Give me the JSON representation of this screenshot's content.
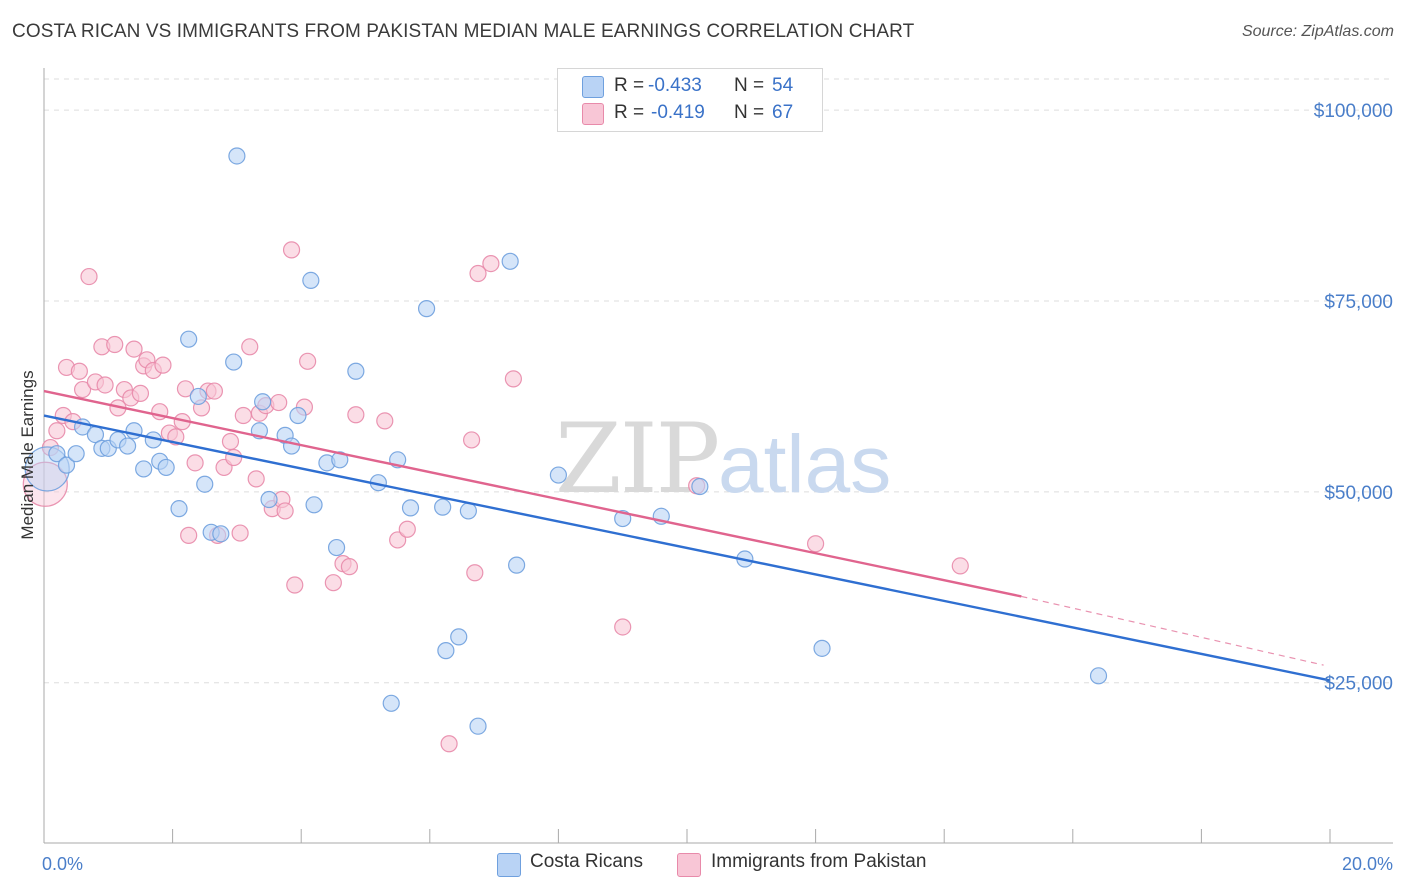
{
  "header": {
    "title": "COSTA RICAN VS IMMIGRANTS FROM PAKISTAN MEDIAN MALE EARNINGS CORRELATION CHART",
    "source": "Source: ZipAtlas.com"
  },
  "legend": {
    "rows": [
      {
        "r_label": "R =",
        "r_value": "-0.433",
        "n_label": "N =",
        "n_value": "54"
      },
      {
        "r_label": "R =",
        "r_value": "-0.419",
        "n_label": "N =",
        "n_value": "67"
      }
    ]
  },
  "bottom_legend": {
    "items": [
      "Costa Ricans",
      "Immigrants from Pakistan"
    ]
  },
  "watermark": {
    "zip": "ZIP",
    "atlas": "atlas"
  },
  "colors": {
    "blue_fill": "#b9d3f5",
    "blue_stroke": "#6fa0de",
    "blue_line": "#2f6fd1",
    "pink_fill": "#f8c6d6",
    "pink_stroke": "#e88aaa",
    "pink_line": "#e0648e",
    "tick_text": "#4a7ec9",
    "grid": "#dddddd"
  },
  "chart_data": {
    "type": "scatter",
    "title": "COSTA RICAN VS IMMIGRANTS FROM PAKISTAN MEDIAN MALE EARNINGS CORRELATION CHART",
    "xlabel": "",
    "ylabel": "Median Male Earnings",
    "x_tick_labels": [
      "0.0%",
      "20.0%"
    ],
    "y_tick_labels": [
      "$25,000",
      "$50,000",
      "$75,000",
      "$100,000"
    ],
    "y_ticks": [
      25000,
      50000,
      75000,
      100000
    ],
    "xlim": [
      0,
      20
    ],
    "ylim": [
      4000,
      105000
    ],
    "grid": true,
    "legend_position": "top-center",
    "series": [
      {
        "name": "Costa Ricans",
        "r": -0.433,
        "n": 54,
        "trend": {
          "x": [
            0,
            20
          ],
          "y": [
            60000,
            25300
          ]
        },
        "points": [
          {
            "x": 0.05,
            "y": 53000,
            "big": true
          },
          {
            "x": 0.2,
            "y": 55000
          },
          {
            "x": 0.35,
            "y": 53500
          },
          {
            "x": 0.5,
            "y": 55000
          },
          {
            "x": 0.6,
            "y": 58500
          },
          {
            "x": 0.8,
            "y": 57500
          },
          {
            "x": 0.9,
            "y": 55700
          },
          {
            "x": 1.0,
            "y": 55700
          },
          {
            "x": 1.15,
            "y": 56800
          },
          {
            "x": 1.3,
            "y": 56000
          },
          {
            "x": 1.4,
            "y": 58000
          },
          {
            "x": 1.55,
            "y": 53000
          },
          {
            "x": 1.7,
            "y": 56800
          },
          {
            "x": 1.8,
            "y": 54000
          },
          {
            "x": 1.9,
            "y": 53200
          },
          {
            "x": 2.1,
            "y": 47800
          },
          {
            "x": 2.25,
            "y": 70000
          },
          {
            "x": 2.4,
            "y": 62500
          },
          {
            "x": 2.5,
            "y": 51000
          },
          {
            "x": 2.6,
            "y": 44700
          },
          {
            "x": 2.75,
            "y": 44500
          },
          {
            "x": 2.95,
            "y": 67000
          },
          {
            "x": 3.0,
            "y": 94000
          },
          {
            "x": 3.35,
            "y": 58000
          },
          {
            "x": 3.4,
            "y": 61800
          },
          {
            "x": 3.5,
            "y": 49000
          },
          {
            "x": 3.75,
            "y": 57400
          },
          {
            "x": 3.85,
            "y": 56000
          },
          {
            "x": 3.95,
            "y": 60000
          },
          {
            "x": 4.15,
            "y": 77700
          },
          {
            "x": 4.2,
            "y": 48300
          },
          {
            "x": 4.4,
            "y": 53800
          },
          {
            "x": 4.55,
            "y": 42700
          },
          {
            "x": 4.6,
            "y": 54200
          },
          {
            "x": 4.85,
            "y": 65800
          },
          {
            "x": 5.2,
            "y": 51200
          },
          {
            "x": 5.4,
            "y": 22300
          },
          {
            "x": 5.5,
            "y": 54200
          },
          {
            "x": 5.7,
            "y": 47900
          },
          {
            "x": 5.95,
            "y": 74000
          },
          {
            "x": 6.2,
            "y": 48000
          },
          {
            "x": 6.25,
            "y": 29200
          },
          {
            "x": 6.45,
            "y": 31000
          },
          {
            "x": 6.6,
            "y": 47500
          },
          {
            "x": 6.75,
            "y": 19300
          },
          {
            "x": 7.25,
            "y": 80200
          },
          {
            "x": 7.35,
            "y": 40400
          },
          {
            "x": 8.0,
            "y": 52200
          },
          {
            "x": 9.0,
            "y": 46500
          },
          {
            "x": 9.6,
            "y": 46800
          },
          {
            "x": 10.2,
            "y": 50700
          },
          {
            "x": 10.9,
            "y": 41200
          },
          {
            "x": 12.1,
            "y": 29500
          },
          {
            "x": 16.4,
            "y": 25900
          }
        ]
      },
      {
        "name": "Immigrants from Pakistan",
        "r": -0.419,
        "n": 67,
        "trend": {
          "x": [
            0,
            15.2
          ],
          "y": [
            63200,
            36300
          ]
        },
        "trend_dashed": {
          "x": [
            15.2,
            19.9
          ],
          "y": [
            36300,
            27300
          ]
        },
        "points": [
          {
            "x": 0.02,
            "y": 51000,
            "big": true
          },
          {
            "x": 0.1,
            "y": 55800
          },
          {
            "x": 0.2,
            "y": 58000
          },
          {
            "x": 0.3,
            "y": 60000
          },
          {
            "x": 0.35,
            "y": 66300
          },
          {
            "x": 0.45,
            "y": 59200
          },
          {
            "x": 0.55,
            "y": 65800
          },
          {
            "x": 0.6,
            "y": 63400
          },
          {
            "x": 0.7,
            "y": 78200
          },
          {
            "x": 0.8,
            "y": 64400
          },
          {
            "x": 0.9,
            "y": 69000
          },
          {
            "x": 0.95,
            "y": 64000
          },
          {
            "x": 1.1,
            "y": 69300
          },
          {
            "x": 1.15,
            "y": 61000
          },
          {
            "x": 1.25,
            "y": 63400
          },
          {
            "x": 1.35,
            "y": 62300
          },
          {
            "x": 1.4,
            "y": 68700
          },
          {
            "x": 1.5,
            "y": 62900
          },
          {
            "x": 1.55,
            "y": 66500
          },
          {
            "x": 1.6,
            "y": 67300
          },
          {
            "x": 1.7,
            "y": 65900
          },
          {
            "x": 1.8,
            "y": 60500
          },
          {
            "x": 1.85,
            "y": 66600
          },
          {
            "x": 1.95,
            "y": 57700
          },
          {
            "x": 2.05,
            "y": 57200
          },
          {
            "x": 2.15,
            "y": 59200
          },
          {
            "x": 2.2,
            "y": 63500
          },
          {
            "x": 2.25,
            "y": 44300
          },
          {
            "x": 2.35,
            "y": 53800
          },
          {
            "x": 2.45,
            "y": 61000
          },
          {
            "x": 2.55,
            "y": 63200
          },
          {
            "x": 2.65,
            "y": 63200
          },
          {
            "x": 2.7,
            "y": 44300
          },
          {
            "x": 2.8,
            "y": 53200
          },
          {
            "x": 2.9,
            "y": 56600
          },
          {
            "x": 2.95,
            "y": 54500
          },
          {
            "x": 3.05,
            "y": 44600
          },
          {
            "x": 3.1,
            "y": 60000
          },
          {
            "x": 3.2,
            "y": 69000
          },
          {
            "x": 3.3,
            "y": 51700
          },
          {
            "x": 3.35,
            "y": 60300
          },
          {
            "x": 3.45,
            "y": 61300
          },
          {
            "x": 3.55,
            "y": 47800
          },
          {
            "x": 3.65,
            "y": 61700
          },
          {
            "x": 3.7,
            "y": 49000
          },
          {
            "x": 3.75,
            "y": 47500
          },
          {
            "x": 3.85,
            "y": 81700
          },
          {
            "x": 3.9,
            "y": 37800
          },
          {
            "x": 4.05,
            "y": 61100
          },
          {
            "x": 4.1,
            "y": 67100
          },
          {
            "x": 4.5,
            "y": 38100
          },
          {
            "x": 4.65,
            "y": 40600
          },
          {
            "x": 4.75,
            "y": 40200
          },
          {
            "x": 4.85,
            "y": 60100
          },
          {
            "x": 5.3,
            "y": 59300
          },
          {
            "x": 5.5,
            "y": 43700
          },
          {
            "x": 5.65,
            "y": 45100
          },
          {
            "x": 6.3,
            "y": 17000
          },
          {
            "x": 6.65,
            "y": 56800
          },
          {
            "x": 6.7,
            "y": 39400
          },
          {
            "x": 6.75,
            "y": 78600
          },
          {
            "x": 6.95,
            "y": 79900
          },
          {
            "x": 7.3,
            "y": 64800
          },
          {
            "x": 9.0,
            "y": 32300
          },
          {
            "x": 10.15,
            "y": 50800
          },
          {
            "x": 12.0,
            "y": 43200
          },
          {
            "x": 14.25,
            "y": 40300
          }
        ]
      }
    ]
  }
}
